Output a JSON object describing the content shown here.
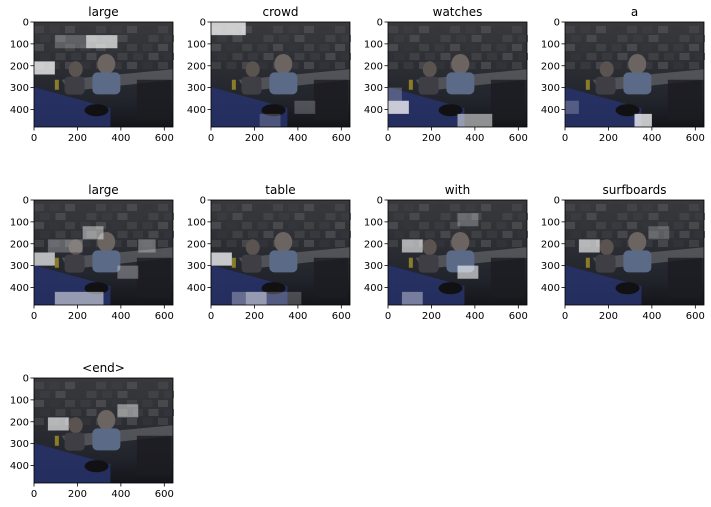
{
  "figure": {
    "panels": [
      {
        "title": "large"
      },
      {
        "title": "crowd"
      },
      {
        "title": "watches"
      },
      {
        "title": "a"
      },
      {
        "title": "large"
      },
      {
        "title": "table"
      },
      {
        "title": "with"
      },
      {
        "title": "surfboards"
      },
      {
        "title": "<end>"
      }
    ]
  },
  "chart_data": {
    "type": "heatmap",
    "caption_tokens": [
      "large",
      "crowd",
      "watches",
      "a",
      "large",
      "table",
      "with",
      "surfboards",
      "<end>"
    ],
    "x_ticks": [
      0,
      200,
      400,
      600
    ],
    "y_ticks": [
      0,
      100,
      200,
      300,
      400
    ],
    "xlim": [
      0,
      640
    ],
    "ylim": [
      480,
      0
    ],
    "grid": false,
    "attention_highlights": [
      [
        {
          "x": [
            240,
            384
          ],
          "y": [
            60,
            120
          ],
          "w": 0.9
        },
        {
          "x": [
            0,
            96
          ],
          "y": [
            180,
            240
          ],
          "w": 1.0
        },
        {
          "x": [
            96,
            240
          ],
          "y": [
            60,
            120
          ],
          "w": 0.3
        }
      ],
      [
        {
          "x": [
            0,
            160
          ],
          "y": [
            0,
            60
          ],
          "w": 1.0
        },
        {
          "x": [
            384,
            480
          ],
          "y": [
            360,
            420
          ],
          "w": 0.3
        },
        {
          "x": [
            224,
            320
          ],
          "y": [
            420,
            480
          ],
          "w": 0.25
        }
      ],
      [
        {
          "x": [
            0,
            96
          ],
          "y": [
            360,
            420
          ],
          "w": 1.0
        },
        {
          "x": [
            320,
            480
          ],
          "y": [
            420,
            480
          ],
          "w": 0.7
        },
        {
          "x": [
            0,
            64
          ],
          "y": [
            300,
            360
          ],
          "w": 0.3
        }
      ],
      [
        {
          "x": [
            320,
            400
          ],
          "y": [
            420,
            480
          ],
          "w": 1.0
        },
        {
          "x": [
            0,
            64
          ],
          "y": [
            360,
            420
          ],
          "w": 0.3
        }
      ],
      [
        {
          "x": [
            0,
            96
          ],
          "y": [
            240,
            300
          ],
          "w": 0.9
        },
        {
          "x": [
            96,
            320
          ],
          "y": [
            420,
            480
          ],
          "w": 0.7
        },
        {
          "x": [
            224,
            320
          ],
          "y": [
            120,
            180
          ],
          "w": 0.6
        },
        {
          "x": [
            384,
            480
          ],
          "y": [
            300,
            360
          ],
          "w": 0.4
        },
        {
          "x": [
            480,
            560
          ],
          "y": [
            180,
            240
          ],
          "w": 0.4
        },
        {
          "x": [
            64,
            224
          ],
          "y": [
            180,
            240
          ],
          "w": 0.35
        }
      ],
      [
        {
          "x": [
            0,
            96
          ],
          "y": [
            240,
            300
          ],
          "w": 1.0
        },
        {
          "x": [
            160,
            256
          ],
          "y": [
            420,
            480
          ],
          "w": 0.7
        },
        {
          "x": [
            96,
            160
          ],
          "y": [
            420,
            480
          ],
          "w": 0.4
        },
        {
          "x": [
            256,
            416
          ],
          "y": [
            420,
            480
          ],
          "w": 0.3
        }
      ],
      [
        {
          "x": [
            64,
            160
          ],
          "y": [
            180,
            240
          ],
          "w": 0.8
        },
        {
          "x": [
            320,
            416
          ],
          "y": [
            300,
            360
          ],
          "w": 0.8
        },
        {
          "x": [
            64,
            160
          ],
          "y": [
            420,
            480
          ],
          "w": 0.5
        },
        {
          "x": [
            320,
            416
          ],
          "y": [
            60,
            120
          ],
          "w": 0.35
        }
      ],
      [
        {
          "x": [
            64,
            160
          ],
          "y": [
            180,
            240
          ],
          "w": 0.85
        },
        {
          "x": [
            384,
            480
          ],
          "y": [
            120,
            180
          ],
          "w": 0.3
        }
      ],
      [
        {
          "x": [
            64,
            160
          ],
          "y": [
            180,
            240
          ],
          "w": 0.85
        },
        {
          "x": [
            384,
            480
          ],
          "y": [
            120,
            180
          ],
          "w": 0.6
        }
      ]
    ]
  }
}
